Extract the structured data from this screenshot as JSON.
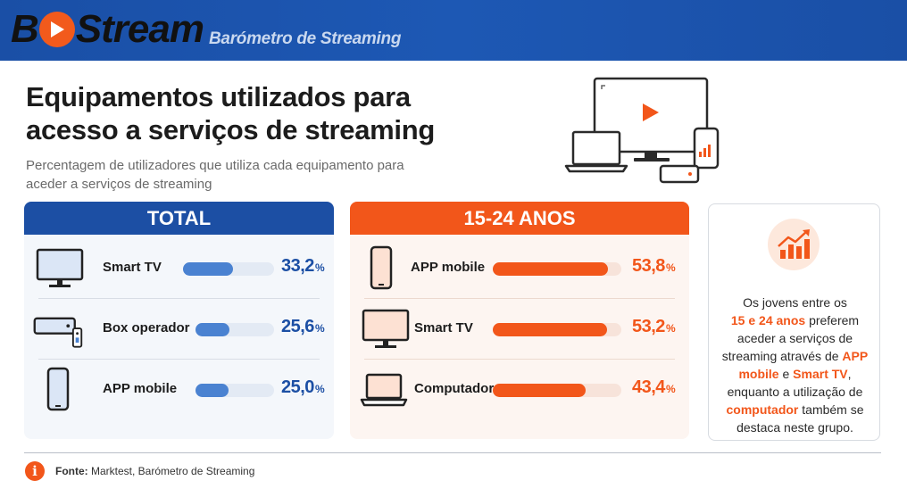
{
  "brand": {
    "logo_b": "B",
    "logo_stream": "Stream",
    "tagline": "Barómetro de Streaming"
  },
  "title": "Equipamentos utilizados para acesso a serviços de streaming",
  "subtitle": "Percentagem de utilizadores que utiliza cada equipamento para aceder a serviços de streaming",
  "colors": {
    "blue": "#1c4fa4",
    "bar_blue": "#4a82d1",
    "orange": "#f2561a"
  },
  "chart_data": [
    {
      "type": "bar",
      "title": "TOTAL",
      "categories": [
        "Smart TV",
        "Box operador",
        "APP mobile"
      ],
      "icons": [
        "tv-icon",
        "set-top-box-icon",
        "smartphone-icon"
      ],
      "values": [
        33.2,
        25.6,
        25.0
      ],
      "labels": [
        "33,2",
        "25,6",
        "25,0"
      ],
      "unit": "%",
      "ylim": [
        0,
        60
      ]
    },
    {
      "type": "bar",
      "title": "15-24 ANOS",
      "categories": [
        "APP mobile",
        "Smart TV",
        "Computador"
      ],
      "icons": [
        "smartphone-icon",
        "tv-icon",
        "laptop-icon"
      ],
      "values": [
        53.8,
        53.2,
        43.4
      ],
      "labels": [
        "53,8",
        "53,2",
        "43,4"
      ],
      "unit": "%",
      "ylim": [
        0,
        60
      ]
    }
  ],
  "insight": {
    "icon": "growth-chart-icon",
    "t1": "Os jovens entre os",
    "h1": "15 e 24 anos",
    "t2": "preferem aceder a serviços de streaming através de",
    "h2": "APP mobile",
    "t3": "e",
    "h3": "Smart TV",
    "t4": ", enquanto a utilização de",
    "h4": "computador",
    "t5": "também se destaca neste grupo."
  },
  "footer": {
    "icon": "info-icon",
    "info_glyph": "i",
    "source_label": "Fonte:",
    "source_text": "Marktest, Barómetro de Streaming"
  }
}
